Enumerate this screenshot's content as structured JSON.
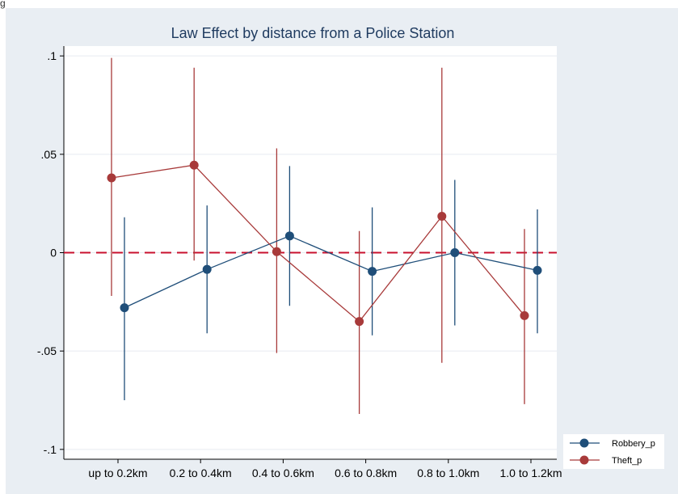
{
  "corner_label": "g",
  "chart_data": {
    "type": "scatter",
    "title": "Law Effect by distance from a Police Station",
    "xlabel": "",
    "ylabel": "",
    "categories": [
      "up to 0.2km",
      "0.2 to 0.4km",
      "0.4 to 0.6km",
      "0.6 to 0.8km",
      "0.8 to 1.0km",
      "1.0 to 1.2km"
    ],
    "ylim": [
      -0.105,
      0.105
    ],
    "yticks": [
      0.1,
      0.05,
      0,
      -0.05,
      -0.1
    ],
    "ytick_labels": [
      ".1",
      ".05",
      "0",
      "-.05",
      "-.1"
    ],
    "reference_line": 0,
    "grid": true,
    "legend_position": "bottom-right",
    "series": [
      {
        "name": "Robbery_p",
        "color": "#1f4e79",
        "values": [
          -0.028,
          -0.0085,
          0.0085,
          -0.0095,
          0.0,
          -0.009
        ],
        "ci_low": [
          -0.075,
          -0.041,
          -0.027,
          -0.042,
          -0.037,
          -0.041
        ],
        "ci_high": [
          0.018,
          0.024,
          0.044,
          0.023,
          0.037,
          0.022
        ]
      },
      {
        "name": "Theft_p",
        "color": "#a83a3a",
        "values": [
          0.038,
          0.0445,
          0.0005,
          -0.035,
          0.0185,
          -0.032
        ],
        "ci_low": [
          -0.022,
          -0.004,
          -0.051,
          -0.082,
          -0.056,
          -0.077
        ],
        "ci_high": [
          0.099,
          0.094,
          0.053,
          0.011,
          0.094,
          0.012
        ]
      }
    ]
  }
}
